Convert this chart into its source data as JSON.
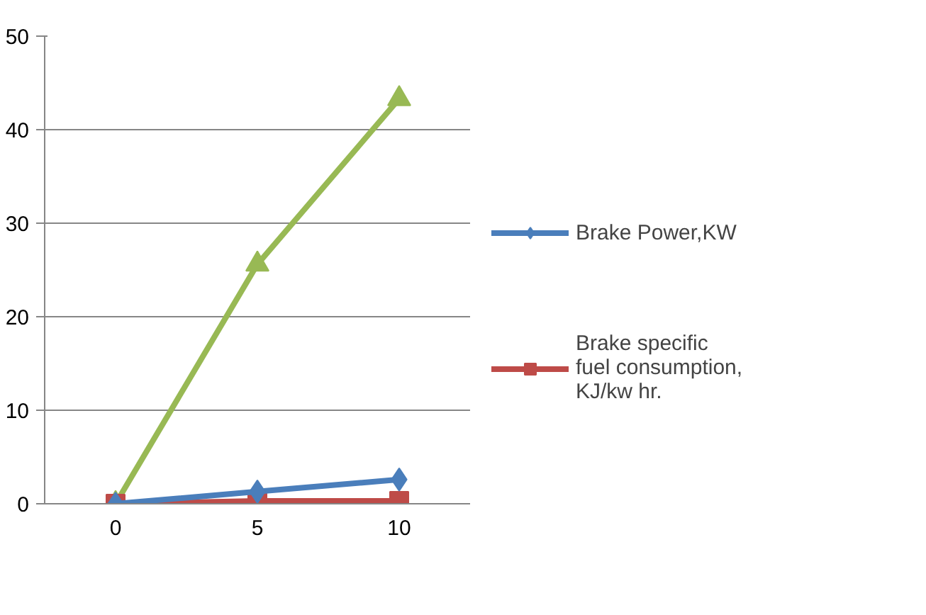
{
  "chart_data": {
    "type": "line",
    "categories": [
      "0",
      "5",
      "10"
    ],
    "ylim": [
      0,
      50
    ],
    "yticks": [
      0,
      10,
      20,
      30,
      40,
      50
    ],
    "grid": "y",
    "legend": "right",
    "series": [
      {
        "name": "Brake Power,KW",
        "color": "#4a7ebb",
        "marker": "diamond",
        "values": [
          0,
          1.3,
          2.6
        ]
      },
      {
        "name": "Brake specific fuel consumption, KJ/kw hr.",
        "color": "#be4b48",
        "marker": "square",
        "values": [
          0,
          0.3,
          0.3
        ]
      },
      {
        "color": "#98b954",
        "marker": "triangle",
        "values": [
          0,
          25.6,
          43.3
        ]
      }
    ]
  }
}
